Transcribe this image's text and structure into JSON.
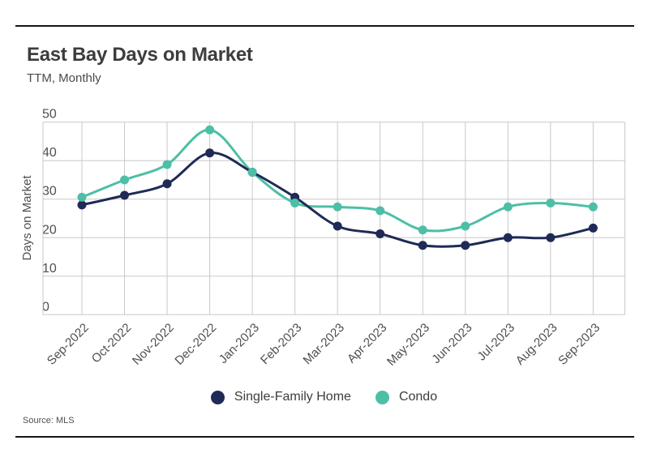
{
  "header": {
    "title": "East Bay Days on Market",
    "subtitle": "TTM, Monthly"
  },
  "source": "Source: MLS",
  "colors": {
    "single_family": "#1F2A56",
    "condo": "#4DBFA6",
    "grid": "#C9C9C9",
    "axis_text": "#4F4F4F",
    "title_text": "#3D3D3D",
    "rule": "#161616"
  },
  "chart_data": {
    "type": "line",
    "title": "East Bay Days on Market",
    "subtitle": "TTM, Monthly",
    "xlabel": "",
    "ylabel": "Days on Market",
    "ylim": [
      0,
      50
    ],
    "yticks": [
      0,
      10,
      20,
      30,
      40,
      50
    ],
    "grid": true,
    "legend_position": "bottom",
    "categories": [
      "Sep-2022",
      "Oct-2022",
      "Nov-2022",
      "Dec-2022",
      "Jan-2023",
      "Feb-2023",
      "Mar-2023",
      "Apr-2023",
      "May-2023",
      "Jun-2023",
      "Jul-2023",
      "Aug-2023",
      "Sep-2023"
    ],
    "series": [
      {
        "name": "Single-Family Home",
        "color": "#1F2A56",
        "values": [
          28.5,
          31,
          34,
          42,
          37,
          30.5,
          23,
          21,
          18,
          18,
          20,
          20,
          22.5
        ]
      },
      {
        "name": "Condo",
        "color": "#4DBFA6",
        "values": [
          30.5,
          35,
          39,
          48,
          37,
          29,
          28,
          27,
          22,
          23,
          28,
          29,
          28
        ]
      }
    ]
  }
}
